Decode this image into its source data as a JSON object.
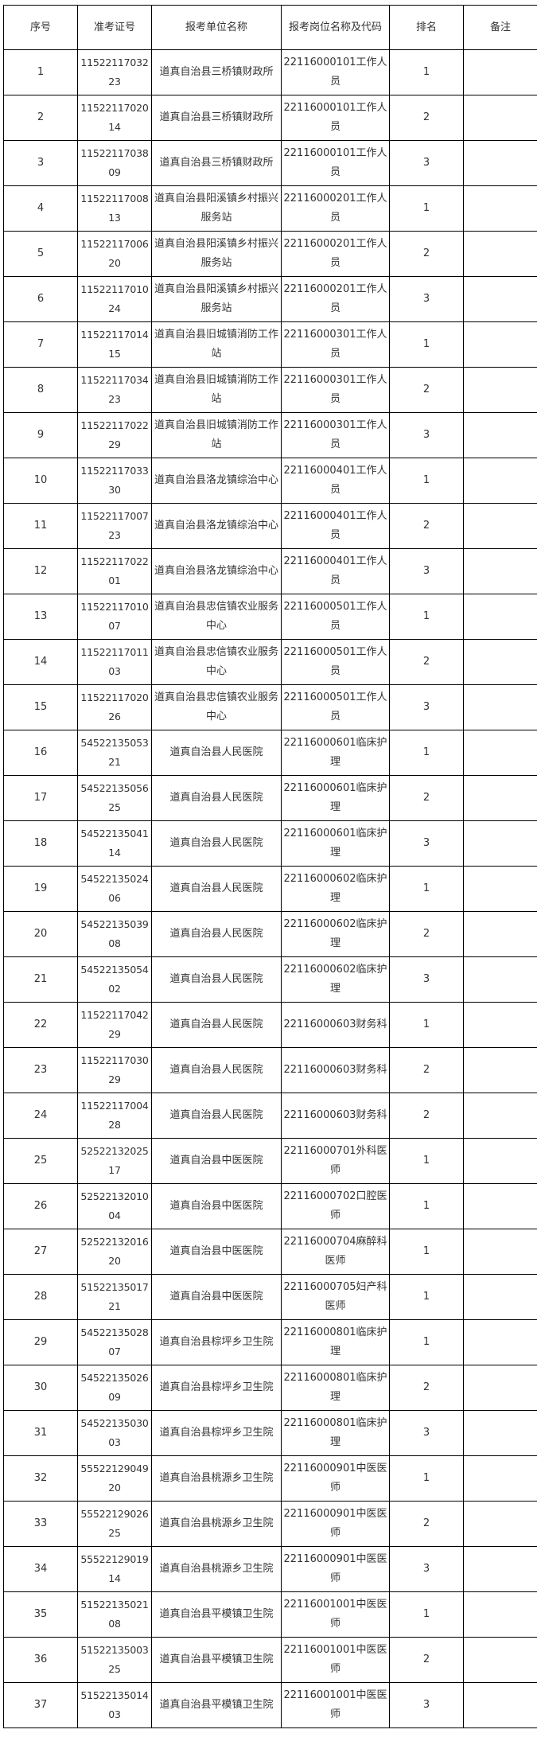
{
  "table": {
    "headers": [
      "序号",
      "准考证号",
      "报考单位名称",
      "报考岗位名称及代码",
      "排名",
      "备注"
    ],
    "rows": [
      [
        "1",
        "1152211703223",
        "道真自治县三桥镇财政所",
        "22116000101工作人员",
        "1",
        ""
      ],
      [
        "2",
        "1152211702014",
        "道真自治县三桥镇财政所",
        "22116000101工作人员",
        "2",
        ""
      ],
      [
        "3",
        "1152211703809",
        "道真自治县三桥镇财政所",
        "22116000101工作人员",
        "3",
        ""
      ],
      [
        "4",
        "1152211700813",
        "道真自治县阳溪镇乡村振兴服务站",
        "22116000201工作人员",
        "1",
        ""
      ],
      [
        "5",
        "1152211700620",
        "道真自治县阳溪镇乡村振兴服务站",
        "22116000201工作人员",
        "2",
        ""
      ],
      [
        "6",
        "1152211701024",
        "道真自治县阳溪镇乡村振兴服务站",
        "22116000201工作人员",
        "3",
        ""
      ],
      [
        "7",
        "1152211701415",
        "道真自治县旧城镇消防工作站",
        "22116000301工作人员",
        "1",
        ""
      ],
      [
        "8",
        "1152211703423",
        "道真自治县旧城镇消防工作站",
        "22116000301工作人员",
        "2",
        ""
      ],
      [
        "9",
        "1152211702229",
        "道真自治县旧城镇消防工作站",
        "22116000301工作人员",
        "3",
        ""
      ],
      [
        "10",
        "1152211703330",
        "道真自治县洛龙镇综治中心",
        "22116000401工作人员",
        "1",
        ""
      ],
      [
        "11",
        "1152211700723",
        "道真自治县洛龙镇综治中心",
        "22116000401工作人员",
        "2",
        ""
      ],
      [
        "12",
        "1152211702201",
        "道真自治县洛龙镇综治中心",
        "22116000401工作人员",
        "3",
        ""
      ],
      [
        "13",
        "1152211701007",
        "道真自治县忠信镇农业服务中心",
        "22116000501工作人员",
        "1",
        ""
      ],
      [
        "14",
        "1152211701103",
        "道真自治县忠信镇农业服务中心",
        "22116000501工作人员",
        "2",
        ""
      ],
      [
        "15",
        "1152211702026",
        "道真自治县忠信镇农业服务中心",
        "22116000501工作人员",
        "3",
        ""
      ],
      [
        "16",
        "5452213505321",
        "道真自治县人民医院",
        "22116000601临床护理",
        "1",
        ""
      ],
      [
        "17",
        "5452213505625",
        "道真自治县人民医院",
        "22116000601临床护理",
        "2",
        ""
      ],
      [
        "18",
        "5452213504114",
        "道真自治县人民医院",
        "22116000601临床护理",
        "3",
        ""
      ],
      [
        "19",
        "5452213502406",
        "道真自治县人民医院",
        "22116000602临床护理",
        "1",
        ""
      ],
      [
        "20",
        "5452213503908",
        "道真自治县人民医院",
        "22116000602临床护理",
        "2",
        ""
      ],
      [
        "21",
        "5452213505402",
        "道真自治县人民医院",
        "22116000602临床护理",
        "3",
        ""
      ],
      [
        "22",
        "1152211704229",
        "道真自治县人民医院",
        "22116000603财务科",
        "1",
        ""
      ],
      [
        "23",
        "1152211703029",
        "道真自治县人民医院",
        "22116000603财务科",
        "2",
        ""
      ],
      [
        "24",
        "1152211700428",
        "道真自治县人民医院",
        "22116000603财务科",
        "2",
        ""
      ],
      [
        "25",
        "5252213202517",
        "道真自治县中医医院",
        "22116000701外科医师",
        "1",
        ""
      ],
      [
        "26",
        "5252213201004",
        "道真自治县中医医院",
        "22116000702口腔医师",
        "1",
        ""
      ],
      [
        "27",
        "5252213201620",
        "道真自治县中医医院",
        "22116000704麻醉科医师",
        "1",
        ""
      ],
      [
        "28",
        "5152213501721",
        "道真自治县中医医院",
        "22116000705妇产科医师",
        "1",
        ""
      ],
      [
        "29",
        "5452213502807",
        "道真自治县棕坪乡卫生院",
        "22116000801临床护理",
        "1",
        ""
      ],
      [
        "30",
        "5452213502609",
        "道真自治县棕坪乡卫生院",
        "22116000801临床护理",
        "2",
        ""
      ],
      [
        "31",
        "5452213503003",
        "道真自治县棕坪乡卫生院",
        "22116000801临床护理",
        "3",
        ""
      ],
      [
        "32",
        "5552212904920",
        "道真自治县桃源乡卫生院",
        "22116000901中医医师",
        "1",
        ""
      ],
      [
        "33",
        "5552212902625",
        "道真自治县桃源乡卫生院",
        "22116000901中医医师",
        "2",
        ""
      ],
      [
        "34",
        "5552212901914",
        "道真自治县桃源乡卫生院",
        "22116000901中医医师",
        "3",
        ""
      ],
      [
        "35",
        "5152213502108",
        "道真自治县平模镇卫生院",
        "22116001001中医医师",
        "1",
        ""
      ],
      [
        "36",
        "5152213500325",
        "道真自治县平模镇卫生院",
        "22116001001中医医师",
        "2",
        ""
      ],
      [
        "37",
        "5152213501403",
        "道真自治县平模镇卫生院",
        "22116001001中医医师",
        "3",
        ""
      ]
    ]
  }
}
